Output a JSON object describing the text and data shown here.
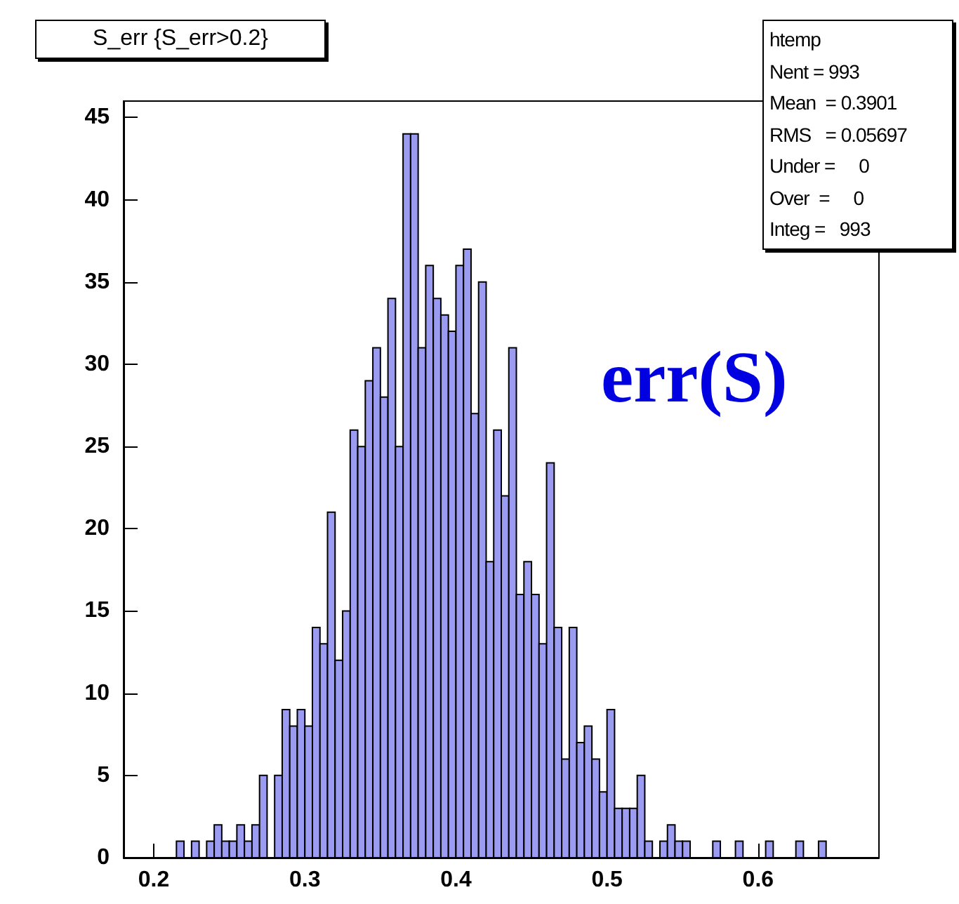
{
  "chart_data": {
    "type": "histogram",
    "title": "S_err {S_err>0.2}",
    "annotations": [
      "htemp",
      "Nent = 993",
      "Mean  = 0.3901",
      "RMS   = 0.05697",
      "Under =     0",
      "Over  =     0",
      "Integ =   993",
      "err(S)"
    ],
    "bins": [
      0.18,
      0.185,
      0.19,
      0.195,
      0.2,
      0.205,
      0.21,
      0.215,
      0.22,
      0.225,
      0.23,
      0.235,
      0.24,
      0.245,
      0.25,
      0.255,
      0.26,
      0.265,
      0.27,
      0.275,
      0.28,
      0.285,
      0.29,
      0.295,
      0.3,
      0.305,
      0.31,
      0.315,
      0.32,
      0.325,
      0.33,
      0.335,
      0.34,
      0.345,
      0.35,
      0.355,
      0.36,
      0.365,
      0.37,
      0.375,
      0.38,
      0.385,
      0.39,
      0.395,
      0.4,
      0.405,
      0.41,
      0.415,
      0.42,
      0.425,
      0.43,
      0.435,
      0.44,
      0.445,
      0.45,
      0.455,
      0.46,
      0.465,
      0.47,
      0.475,
      0.48,
      0.485,
      0.49,
      0.495,
      0.5,
      0.505,
      0.51,
      0.515,
      0.52,
      0.525,
      0.53,
      0.535,
      0.54,
      0.545,
      0.55,
      0.555,
      0.56,
      0.565,
      0.57,
      0.575,
      0.58,
      0.585,
      0.59,
      0.595,
      0.6,
      0.605,
      0.61,
      0.615,
      0.62,
      0.625,
      0.63,
      0.635,
      0.64,
      0.645,
      0.65,
      0.655,
      0.66,
      0.665,
      0.67,
      0.675,
      0.68
    ],
    "values": [
      0,
      0,
      0,
      0,
      0,
      0,
      0,
      1,
      0,
      1,
      0,
      1,
      2,
      1,
      1,
      2,
      1,
      2,
      5,
      0,
      5,
      9,
      8,
      9,
      8,
      14,
      13,
      21,
      12,
      15,
      26,
      25,
      29,
      31,
      28,
      34,
      25,
      44,
      44,
      31,
      36,
      34,
      33,
      32,
      36,
      37,
      27,
      35,
      18,
      26,
      22,
      31,
      16,
      18,
      16,
      13,
      24,
      14,
      6,
      14,
      7,
      8,
      6,
      4,
      9,
      3,
      3,
      3,
      5,
      1,
      0,
      1,
      2,
      1,
      1,
      0,
      0,
      0,
      1,
      0,
      0,
      1,
      0,
      0,
      0,
      1,
      0,
      0,
      0,
      1,
      0,
      0,
      1,
      0,
      0,
      0,
      0,
      0,
      0,
      0
    ],
    "color": "#9b9bf2",
    "xlim": [
      0.18,
      0.68
    ],
    "xticks": [
      0.2,
      0.3,
      0.4,
      0.5,
      0.6
    ],
    "ylim": [
      0,
      46
    ],
    "yticks": [
      0,
      5,
      10,
      15,
      20,
      25,
      30,
      35,
      40,
      45
    ],
    "grid": false
  }
}
